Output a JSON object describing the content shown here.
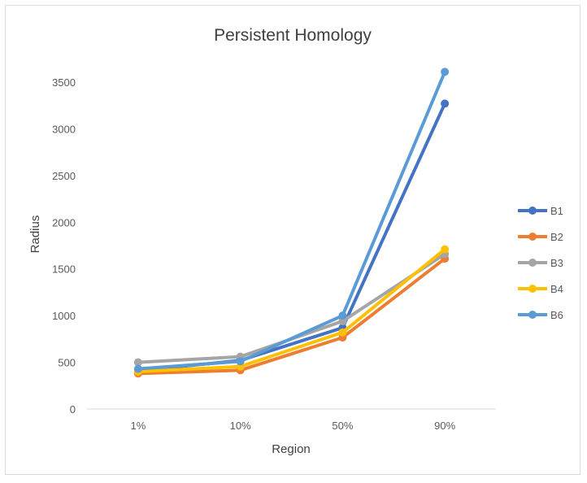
{
  "chart_data": {
    "type": "line",
    "title": "Persistent Homology",
    "xlabel": "Region",
    "ylabel": "Radius",
    "categories": [
      "1%",
      "10%",
      "50%",
      "90%"
    ],
    "ylim": [
      0,
      3500
    ],
    "yticks": [
      0,
      500,
      1000,
      1500,
      2000,
      2500,
      3000,
      3500
    ],
    "grid": false,
    "legend_position": "right",
    "series": [
      {
        "name": "B1",
        "color": "#4472C4",
        "values": [
          410,
          520,
          870,
          3270
        ]
      },
      {
        "name": "B2",
        "color": "#ED7D31",
        "values": [
          380,
          415,
          765,
          1610
        ]
      },
      {
        "name": "B3",
        "color": "#A5A5A5",
        "values": [
          500,
          560,
          940,
          1660
        ]
      },
      {
        "name": "B4",
        "color": "#FFC000",
        "values": [
          400,
          455,
          820,
          1710
        ]
      },
      {
        "name": "B6",
        "color": "#5B9BD5",
        "values": [
          430,
          510,
          1000,
          3610
        ]
      }
    ]
  }
}
